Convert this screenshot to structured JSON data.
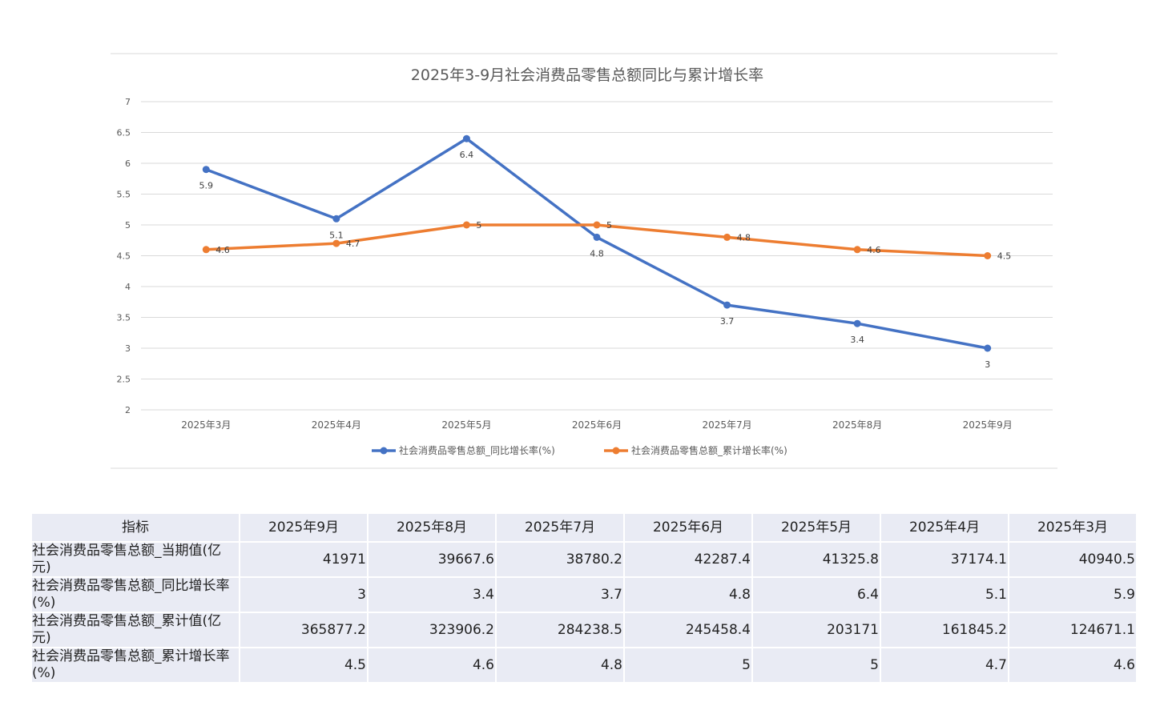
{
  "chart_data": {
    "type": "line",
    "title": "2025年3-9月社会消费品零售总额同比与累计增长率",
    "categories": [
      "2025年3月",
      "2025年4月",
      "2025年5月",
      "2025年6月",
      "2025年7月",
      "2025年8月",
      "2025年9月"
    ],
    "ylim": [
      2,
      7
    ],
    "yticks": [
      "2",
      "2.5",
      "3",
      "3.5",
      "4",
      "4.5",
      "5",
      "5.5",
      "6",
      "6.5",
      "7"
    ],
    "grid": true,
    "legend_position": "bottom",
    "series": [
      {
        "name": "社会消费品零售总额_同比增长率(%)",
        "values": [
          5.9,
          5.1,
          6.4,
          4.8,
          3.7,
          3.4,
          3
        ],
        "labels": [
          "5.9",
          "5.1",
          "6.4",
          "4.8",
          "3.7",
          "3.4",
          "3"
        ],
        "color": "#4472c4",
        "label_position": "below"
      },
      {
        "name": "社会消费品零售总额_累计增长率(%)",
        "values": [
          4.6,
          4.7,
          5,
          5,
          4.8,
          4.6,
          4.5
        ],
        "labels": [
          "4.6",
          "4.7",
          "5",
          "5",
          "4.8",
          "4.6",
          "4.5"
        ],
        "color": "#ed7d31",
        "label_position": "right"
      }
    ]
  },
  "table": {
    "header": [
      "指标",
      "2025年9月",
      "2025年8月",
      "2025年7月",
      "2025年6月",
      "2025年5月",
      "2025年4月",
      "2025年3月"
    ],
    "rows": [
      {
        "label": "社会消费品零售总额_当期值(亿元)",
        "values": [
          "41971",
          "39667.6",
          "38780.2",
          "42287.4",
          "41325.8",
          "37174.1",
          "40940.5"
        ]
      },
      {
        "label": "社会消费品零售总额_同比增长率(%)",
        "values": [
          "3",
          "3.4",
          "3.7",
          "4.8",
          "6.4",
          "5.1",
          "5.9"
        ]
      },
      {
        "label": "社会消费品零售总额_累计值(亿元)",
        "values": [
          "365877.2",
          "323906.2",
          "284238.5",
          "245458.4",
          "203171",
          "161845.2",
          "124671.1"
        ]
      },
      {
        "label": "社会消费品零售总额_累计增长率(%)",
        "values": [
          "4.5",
          "4.6",
          "4.8",
          "5",
          "5",
          "4.7",
          "4.6"
        ]
      }
    ]
  },
  "colors": {
    "table_cell_bg": "#e9ebf4",
    "gridline": "#d9d9d9"
  }
}
